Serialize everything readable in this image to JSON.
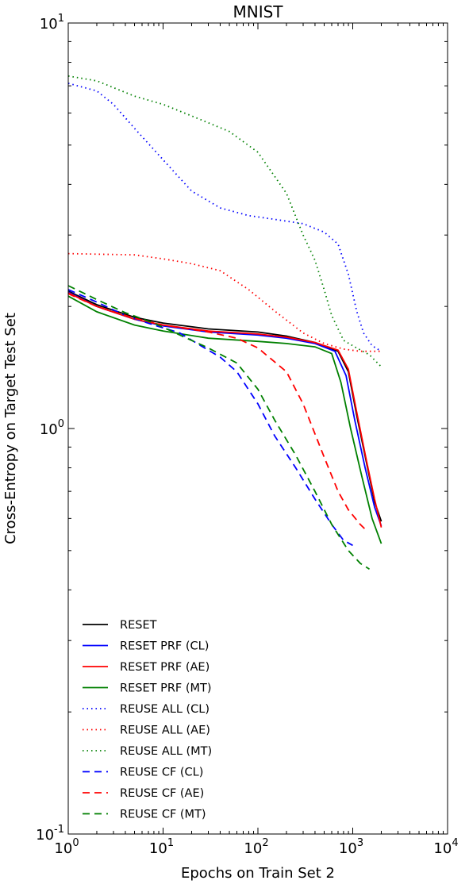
{
  "chart_data": {
    "type": "line",
    "title": "MNIST",
    "xlabel": "Epochs on Train Set 2",
    "ylabel": "Cross-Entropy on Target Test Set",
    "xscale": "log",
    "yscale": "log",
    "xlim": [
      1,
      10000
    ],
    "ylim": [
      0.1,
      10
    ],
    "grid": false,
    "legend_position": "lower-left",
    "x_ticks": [
      {
        "base": "10",
        "exp": "0"
      },
      {
        "base": "10",
        "exp": "1"
      },
      {
        "base": "10",
        "exp": "2"
      },
      {
        "base": "10",
        "exp": "3"
      },
      {
        "base": "10",
        "exp": "4"
      }
    ],
    "y_ticks": [
      {
        "base": "10",
        "exp": "-1"
      },
      {
        "base": "10",
        "exp": "0"
      },
      {
        "base": "10",
        "exp": "1"
      }
    ],
    "series": [
      {
        "name": "RESET",
        "color": "#000000",
        "dash": "solid",
        "points": [
          [
            1,
            2.18
          ],
          [
            2,
            2.02
          ],
          [
            5,
            1.88
          ],
          [
            10,
            1.82
          ],
          [
            30,
            1.76
          ],
          [
            100,
            1.73
          ],
          [
            200,
            1.69
          ],
          [
            400,
            1.63
          ],
          [
            700,
            1.55
          ],
          [
            900,
            1.38
          ],
          [
            1100,
            1.08
          ],
          [
            1400,
            0.82
          ],
          [
            1700,
            0.66
          ],
          [
            2000,
            0.59
          ]
        ]
      },
      {
        "name": "RESET PRF (CL)",
        "color": "#0000ff",
        "dash": "solid",
        "points": [
          [
            1,
            2.17
          ],
          [
            2,
            2.0
          ],
          [
            5,
            1.86
          ],
          [
            10,
            1.79
          ],
          [
            30,
            1.73
          ],
          [
            100,
            1.7
          ],
          [
            200,
            1.67
          ],
          [
            400,
            1.62
          ],
          [
            650,
            1.55
          ],
          [
            850,
            1.35
          ],
          [
            1050,
            1.05
          ],
          [
            1350,
            0.8
          ],
          [
            1700,
            0.64
          ],
          [
            2000,
            0.575
          ]
        ]
      },
      {
        "name": "RESET PRF (AE)",
        "color": "#ff0000",
        "dash": "solid",
        "points": [
          [
            1,
            2.16
          ],
          [
            2,
            2.0
          ],
          [
            5,
            1.86
          ],
          [
            10,
            1.8
          ],
          [
            30,
            1.74
          ],
          [
            100,
            1.71
          ],
          [
            200,
            1.68
          ],
          [
            400,
            1.63
          ],
          [
            700,
            1.56
          ],
          [
            900,
            1.4
          ],
          [
            1100,
            1.1
          ],
          [
            1400,
            0.83
          ],
          [
            1700,
            0.67
          ],
          [
            2000,
            0.57
          ]
        ]
      },
      {
        "name": "RESET PRF (MT)",
        "color": "#008000",
        "dash": "solid",
        "points": [
          [
            1,
            2.12
          ],
          [
            2,
            1.94
          ],
          [
            5,
            1.8
          ],
          [
            10,
            1.74
          ],
          [
            30,
            1.67
          ],
          [
            100,
            1.64
          ],
          [
            200,
            1.62
          ],
          [
            400,
            1.59
          ],
          [
            600,
            1.53
          ],
          [
            750,
            1.3
          ],
          [
            950,
            1.0
          ],
          [
            1250,
            0.76
          ],
          [
            1600,
            0.6
          ],
          [
            2000,
            0.52
          ]
        ]
      },
      {
        "name": "REUSE ALL (CL)",
        "color": "#0000ff",
        "dash": "dotted",
        "points": [
          [
            1,
            7.1
          ],
          [
            2,
            6.8
          ],
          [
            3,
            6.3
          ],
          [
            5,
            5.5
          ],
          [
            10,
            4.6
          ],
          [
            20,
            3.85
          ],
          [
            40,
            3.5
          ],
          [
            80,
            3.35
          ],
          [
            150,
            3.28
          ],
          [
            300,
            3.2
          ],
          [
            500,
            3.05
          ],
          [
            700,
            2.85
          ],
          [
            900,
            2.4
          ],
          [
            1100,
            1.95
          ],
          [
            1300,
            1.72
          ],
          [
            1600,
            1.6
          ],
          [
            2000,
            1.55
          ]
        ]
      },
      {
        "name": "REUSE ALL (AE)",
        "color": "#ff0000",
        "dash": "dotted",
        "points": [
          [
            1,
            2.7
          ],
          [
            5,
            2.68
          ],
          [
            10,
            2.62
          ],
          [
            20,
            2.55
          ],
          [
            40,
            2.45
          ],
          [
            80,
            2.2
          ],
          [
            150,
            1.95
          ],
          [
            300,
            1.72
          ],
          [
            500,
            1.62
          ],
          [
            800,
            1.57
          ],
          [
            1200,
            1.55
          ],
          [
            2000,
            1.55
          ]
        ]
      },
      {
        "name": "REUSE ALL (MT)",
        "color": "#008000",
        "dash": "dotted",
        "points": [
          [
            1,
            7.4
          ],
          [
            2,
            7.2
          ],
          [
            5,
            6.6
          ],
          [
            10,
            6.3
          ],
          [
            20,
            5.9
          ],
          [
            50,
            5.4
          ],
          [
            100,
            4.8
          ],
          [
            200,
            3.8
          ],
          [
            300,
            3.0
          ],
          [
            400,
            2.6
          ],
          [
            500,
            2.2
          ],
          [
            600,
            1.9
          ],
          [
            800,
            1.65
          ],
          [
            1100,
            1.58
          ],
          [
            1500,
            1.52
          ],
          [
            2000,
            1.42
          ]
        ]
      },
      {
        "name": "REUSE CF (CL)",
        "color": "#0000ff",
        "dash": "dashed",
        "points": [
          [
            1,
            2.2
          ],
          [
            2,
            2.05
          ],
          [
            4,
            1.9
          ],
          [
            8,
            1.8
          ],
          [
            15,
            1.72
          ],
          [
            25,
            1.6
          ],
          [
            40,
            1.5
          ],
          [
            60,
            1.38
          ],
          [
            100,
            1.15
          ],
          [
            150,
            0.96
          ],
          [
            250,
            0.8
          ],
          [
            400,
            0.67
          ],
          [
            600,
            0.58
          ],
          [
            800,
            0.53
          ],
          [
            1000,
            0.515
          ]
        ]
      },
      {
        "name": "REUSE CF (AE)",
        "color": "#ff0000",
        "dash": "dashed",
        "points": [
          [
            1,
            2.15
          ],
          [
            2,
            2.0
          ],
          [
            5,
            1.87
          ],
          [
            10,
            1.8
          ],
          [
            30,
            1.73
          ],
          [
            60,
            1.67
          ],
          [
            100,
            1.58
          ],
          [
            200,
            1.38
          ],
          [
            300,
            1.15
          ],
          [
            500,
            0.85
          ],
          [
            700,
            0.7
          ],
          [
            900,
            0.63
          ],
          [
            1200,
            0.58
          ],
          [
            1400,
            0.56
          ]
        ]
      },
      {
        "name": "REUSE CF (MT)",
        "color": "#008000",
        "dash": "dashed",
        "points": [
          [
            1,
            2.25
          ],
          [
            2,
            2.08
          ],
          [
            4,
            1.93
          ],
          [
            8,
            1.82
          ],
          [
            15,
            1.7
          ],
          [
            30,
            1.58
          ],
          [
            60,
            1.45
          ],
          [
            100,
            1.25
          ],
          [
            150,
            1.05
          ],
          [
            250,
            0.86
          ],
          [
            400,
            0.7
          ],
          [
            600,
            0.58
          ],
          [
            900,
            0.5
          ],
          [
            1200,
            0.465
          ],
          [
            1500,
            0.45
          ]
        ]
      }
    ]
  }
}
